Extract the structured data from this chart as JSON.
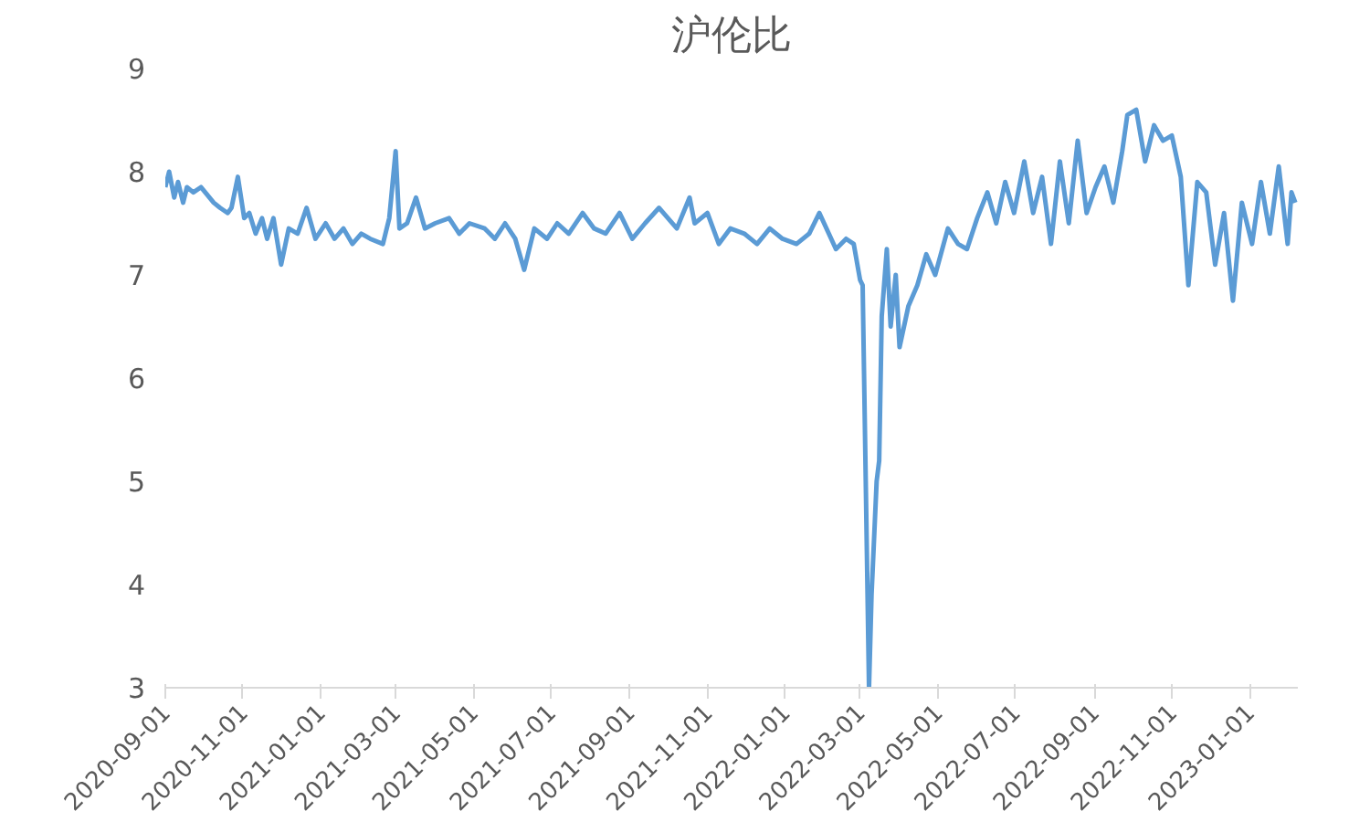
{
  "chart_data": {
    "type": "line",
    "title": "沪伦比",
    "x": [
      "2020-09-01",
      "2020-09-04",
      "2020-09-08",
      "2020-09-11",
      "2020-09-15",
      "2020-09-18",
      "2020-09-23",
      "2020-09-29",
      "2020-10-09",
      "2020-10-14",
      "2020-10-20",
      "2020-10-23",
      "2020-10-28",
      "2020-11-02",
      "2020-11-06",
      "2020-11-11",
      "2020-11-16",
      "2020-11-20",
      "2020-11-25",
      "2020-12-01",
      "2020-12-07",
      "2020-12-14",
      "2020-12-21",
      "2020-12-28",
      "2021-01-05",
      "2021-01-12",
      "2021-01-19",
      "2021-01-26",
      "2021-02-02",
      "2021-02-09",
      "2021-02-19",
      "2021-02-24",
      "2021-03-01",
      "2021-03-04",
      "2021-03-10",
      "2021-03-17",
      "2021-03-24",
      "2021-04-01",
      "2021-04-12",
      "2021-04-20",
      "2021-04-28",
      "2021-05-10",
      "2021-05-18",
      "2021-05-26",
      "2021-06-03",
      "2021-06-10",
      "2021-06-18",
      "2021-06-28",
      "2021-07-06",
      "2021-07-15",
      "2021-07-26",
      "2021-08-04",
      "2021-08-13",
      "2021-08-24",
      "2021-09-03",
      "2021-09-13",
      "2021-09-24",
      "2021-10-08",
      "2021-10-18",
      "2021-10-22",
      "2021-11-01",
      "2021-11-10",
      "2021-11-19",
      "2021-11-30",
      "2021-12-10",
      "2021-12-20",
      "2021-12-30",
      "2022-01-10",
      "2022-01-20",
      "2022-01-28",
      "2022-02-10",
      "2022-02-18",
      "2022-02-24",
      "2022-03-01",
      "2022-03-03",
      "2022-03-08",
      "2022-03-10",
      "2022-03-14",
      "2022-03-16",
      "2022-03-18",
      "2022-03-22",
      "2022-03-25",
      "2022-03-29",
      "2022-04-01",
      "2022-04-08",
      "2022-04-15",
      "2022-04-22",
      "2022-04-29",
      "2022-05-09",
      "2022-05-17",
      "2022-05-24",
      "2022-06-01",
      "2022-06-09",
      "2022-06-16",
      "2022-06-23",
      "2022-06-30",
      "2022-07-08",
      "2022-07-15",
      "2022-07-22",
      "2022-07-29",
      "2022-08-05",
      "2022-08-12",
      "2022-08-19",
      "2022-08-26",
      "2022-09-02",
      "2022-09-09",
      "2022-09-16",
      "2022-09-23",
      "2022-09-27",
      "2022-10-04",
      "2022-10-11",
      "2022-10-18",
      "2022-10-25",
      "2022-11-01",
      "2022-11-08",
      "2022-11-14",
      "2022-11-21",
      "2022-11-28",
      "2022-12-05",
      "2022-12-12",
      "2022-12-19",
      "2022-12-26",
      "2023-01-03",
      "2023-01-10",
      "2023-01-17",
      "2023-01-24",
      "2023-01-31",
      "2023-02-03",
      "2023-02-06"
    ],
    "series": [
      {
        "color": "#5b9bd5",
        "values": [
          7.85,
          8.0,
          7.75,
          7.9,
          7.7,
          7.85,
          7.8,
          7.85,
          7.7,
          7.65,
          7.6,
          7.65,
          7.95,
          7.55,
          7.6,
          7.4,
          7.55,
          7.35,
          7.55,
          7.1,
          7.45,
          7.4,
          7.65,
          7.35,
          7.5,
          7.35,
          7.45,
          7.3,
          7.4,
          7.35,
          7.3,
          7.55,
          8.2,
          7.45,
          7.5,
          7.75,
          7.45,
          7.5,
          7.55,
          7.4,
          7.5,
          7.45,
          7.35,
          7.5,
          7.35,
          7.05,
          7.45,
          7.35,
          7.5,
          7.4,
          7.6,
          7.45,
          7.4,
          7.6,
          7.35,
          7.5,
          7.65,
          7.45,
          7.75,
          7.5,
          7.6,
          7.3,
          7.45,
          7.4,
          7.3,
          7.45,
          7.35,
          7.3,
          7.4,
          7.6,
          7.25,
          7.35,
          7.3,
          6.95,
          6.9,
          3.0,
          3.9,
          5.0,
          5.2,
          6.6,
          7.25,
          6.5,
          7.0,
          6.3,
          6.7,
          6.9,
          7.2,
          7.0,
          7.45,
          7.3,
          7.25,
          7.55,
          7.8,
          7.5,
          7.9,
          7.6,
          8.1,
          7.6,
          7.95,
          7.3,
          8.1,
          7.5,
          8.3,
          7.6,
          7.85,
          8.05,
          7.7,
          8.2,
          8.55,
          8.6,
          8.1,
          8.45,
          8.3,
          8.35,
          7.95,
          6.9,
          7.9,
          7.8,
          7.1,
          7.6,
          6.75,
          7.7,
          7.3,
          7.9,
          7.4,
          8.05,
          7.3,
          7.8,
          7.7
        ]
      }
    ],
    "xlim": [
      "2020-09-01",
      "2023-02-08"
    ],
    "xticks": [
      "2020-09-01",
      "2020-11-01",
      "2021-01-01",
      "2021-03-01",
      "2021-05-01",
      "2021-07-01",
      "2021-09-01",
      "2021-11-01",
      "2022-01-01",
      "2022-03-01",
      "2022-05-01",
      "2022-07-01",
      "2022-09-01",
      "2022-11-01",
      "2023-01-01"
    ],
    "ylim": [
      3,
      9
    ],
    "yticks": [
      3,
      4,
      5,
      6,
      7,
      8,
      9
    ],
    "grid": false,
    "line_style": "solid",
    "marker": "none"
  }
}
